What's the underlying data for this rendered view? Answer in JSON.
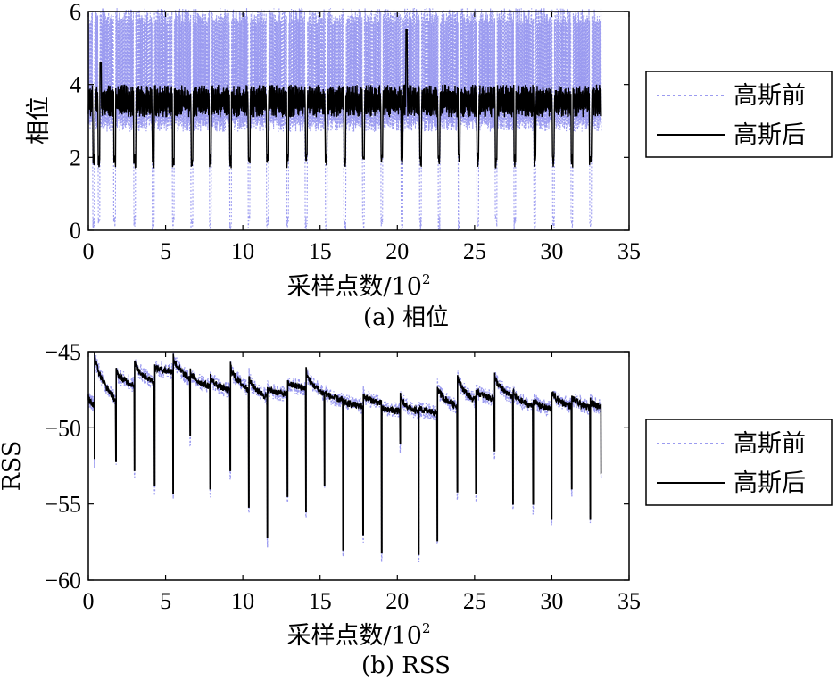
{
  "chart_data": [
    {
      "type": "line",
      "caption": "(a) 相位",
      "xlabel": "采样点数/10",
      "xlabel_exp": "2",
      "ylabel": "相位",
      "xlim": [
        0,
        35
      ],
      "ylim": [
        0,
        6
      ],
      "xticks": [
        0,
        5,
        10,
        15,
        20,
        25,
        30,
        35
      ],
      "yticks": [
        0,
        2,
        4,
        6
      ],
      "x_range": [
        0,
        33.2
      ],
      "dips_at": [
        0.35,
        0.7,
        1.7,
        3.0,
        4.2,
        5.5,
        6.7,
        7.9,
        9.2,
        10.4,
        11.6,
        12.9,
        14.1,
        15.4,
        16.6,
        17.8,
        19.0,
        20.3,
        21.5,
        22.7,
        24.0,
        25.2,
        26.4,
        27.6,
        28.9,
        30.1,
        31.3,
        32.5
      ],
      "series": [
        {
          "name": "高斯前",
          "color": "#9b9bf0",
          "style": "dotted",
          "low": 2.7,
          "high": 6.1,
          "dip_to": 0.0
        },
        {
          "name": "高斯后",
          "color": "#000000",
          "style": "solid",
          "low": 3.1,
          "high": 4.0,
          "dip_to": 1.7,
          "peaks": [
            {
              "x": 20.6,
              "y": 5.5
            },
            {
              "x": 0.8,
              "y": 4.6
            }
          ]
        }
      ],
      "legend": {
        "position": "right",
        "entries": [
          "高斯前",
          "高斯后"
        ]
      }
    },
    {
      "type": "line",
      "caption": "(b) RSS",
      "xlabel": "采样点数/10",
      "xlabel_exp": "2",
      "ylabel": "RSS",
      "xlim": [
        0,
        35
      ],
      "ylim": [
        -60,
        -45
      ],
      "xticks": [
        0,
        5,
        10,
        15,
        20,
        25,
        30,
        35
      ],
      "yticks": [
        -60,
        -55,
        -50,
        -45
      ],
      "x_range": [
        0,
        33.2
      ],
      "segments": [
        {
          "x0": 0.0,
          "x1": 0.4,
          "start": -48.0,
          "end": -48.5,
          "dip_x": 0.4,
          "dip": -52.0
        },
        {
          "x0": 0.4,
          "x1": 1.8,
          "start": -44.8,
          "end": -48.2,
          "dip_x": 1.8,
          "dip": -52.2
        },
        {
          "x0": 1.8,
          "x1": 3.0,
          "start": -46.2,
          "end": -47.2,
          "dip_x": 3.0,
          "dip": -52.8
        },
        {
          "x0": 3.0,
          "x1": 4.3,
          "start": -45.6,
          "end": -47.0,
          "dip_x": 4.3,
          "dip": -53.8
        },
        {
          "x0": 4.3,
          "x1": 5.5,
          "start": -46.0,
          "end": -46.3,
          "dip_x": 5.5,
          "dip": -54.3
        },
        {
          "x0": 5.5,
          "x1": 6.6,
          "start": -45.2,
          "end": -46.8,
          "dip_x": 6.6,
          "dip": -50.5
        },
        {
          "x0": 6.6,
          "x1": 7.9,
          "start": -46.3,
          "end": -47.3,
          "dip_x": 7.9,
          "dip": -54.0
        },
        {
          "x0": 7.9,
          "x1": 9.2,
          "start": -46.6,
          "end": -47.6,
          "dip_x": 9.2,
          "dip": -52.8
        },
        {
          "x0": 9.2,
          "x1": 10.4,
          "start": -45.8,
          "end": -47.5,
          "dip_x": 10.4,
          "dip": -55.2
        },
        {
          "x0": 10.4,
          "x1": 11.6,
          "start": -46.6,
          "end": -48.0,
          "dip_x": 11.6,
          "dip": -57.2
        },
        {
          "x0": 11.6,
          "x1": 12.9,
          "start": -47.4,
          "end": -47.8,
          "dip_x": 12.9,
          "dip": -54.5
        },
        {
          "x0": 12.9,
          "x1": 14.1,
          "start": -47.0,
          "end": -47.4,
          "dip_x": 14.1,
          "dip": -55.5
        },
        {
          "x0": 14.1,
          "x1": 15.3,
          "start": -46.2,
          "end": -47.8,
          "dip_x": 15.3,
          "dip": -53.8
        },
        {
          "x0": 15.3,
          "x1": 16.5,
          "start": -47.6,
          "end": -48.2,
          "dip_x": 16.5,
          "dip": -58.0
        },
        {
          "x0": 16.5,
          "x1": 17.8,
          "start": -48.2,
          "end": -48.6,
          "dip_x": 17.8,
          "dip": -57.0
        },
        {
          "x0": 17.8,
          "x1": 19.0,
          "start": -47.8,
          "end": -48.4,
          "dip_x": 19.0,
          "dip": -58.2
        },
        {
          "x0": 19.0,
          "x1": 20.2,
          "start": -48.7,
          "end": -48.9,
          "dip_x": 20.2,
          "dip": -51.0
        },
        {
          "x0": 20.2,
          "x1": 21.4,
          "start": -47.9,
          "end": -49.0,
          "dip_x": 21.4,
          "dip": -58.3
        },
        {
          "x0": 21.4,
          "x1": 22.6,
          "start": -48.7,
          "end": -49.0,
          "dip_x": 22.6,
          "dip": -57.4
        },
        {
          "x0": 22.6,
          "x1": 23.9,
          "start": -47.3,
          "end": -48.6,
          "dip_x": 23.9,
          "dip": -54.2
        },
        {
          "x0": 23.9,
          "x1": 25.1,
          "start": -46.4,
          "end": -48.3,
          "dip_x": 25.1,
          "dip": -54.3
        },
        {
          "x0": 25.1,
          "x1": 26.3,
          "start": -47.5,
          "end": -48.1,
          "dip_x": 26.3,
          "dip": -51.5
        },
        {
          "x0": 26.3,
          "x1": 27.5,
          "start": -46.5,
          "end": -48.0,
          "dip_x": 27.5,
          "dip": -55.0
        },
        {
          "x0": 27.5,
          "x1": 28.8,
          "start": -47.6,
          "end": -48.6,
          "dip_x": 28.8,
          "dip": -55.0
        },
        {
          "x0": 28.8,
          "x1": 30.0,
          "start": -48.1,
          "end": -48.8,
          "dip_x": 30.0,
          "dip": -56.0
        },
        {
          "x0": 30.0,
          "x1": 31.3,
          "start": -47.6,
          "end": -48.6,
          "dip_x": 31.3,
          "dip": -54.0
        },
        {
          "x0": 31.3,
          "x1": 32.5,
          "start": -47.9,
          "end": -48.7,
          "dip_x": 32.5,
          "dip": -56.0
        },
        {
          "x0": 32.5,
          "x1": 33.2,
          "start": -48.2,
          "end": -48.6,
          "dip_x": 33.2,
          "dip": -53.0
        }
      ],
      "series": [
        {
          "name": "高斯前",
          "color": "#9b9bf0",
          "style": "dotted",
          "noise": 0.55,
          "extra_dip": 0.7
        },
        {
          "name": "高斯后",
          "color": "#000000",
          "style": "solid",
          "noise": 0.22,
          "extra_dip": 0.0
        }
      ],
      "legend": {
        "position": "right",
        "entries": [
          "高斯前",
          "高斯后"
        ]
      }
    }
  ]
}
